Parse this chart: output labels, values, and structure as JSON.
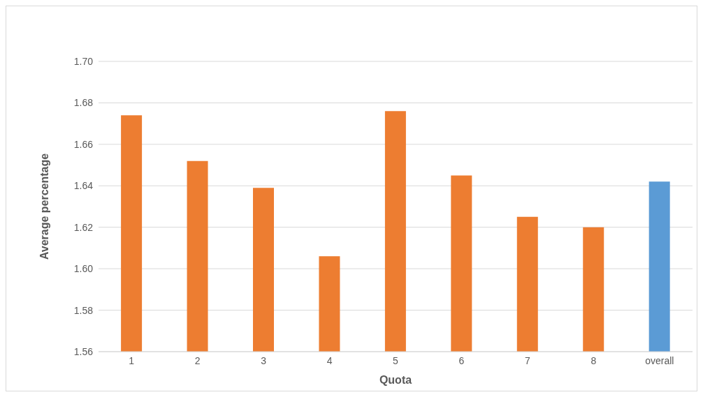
{
  "chart_data": {
    "type": "bar",
    "xlabel": "Quota",
    "ylabel": "Average percentage",
    "categories": [
      "1",
      "2",
      "3",
      "4",
      "5",
      "6",
      "7",
      "8",
      "overall"
    ],
    "values": [
      1.674,
      1.652,
      1.639,
      1.606,
      1.676,
      1.645,
      1.625,
      1.62,
      1.642
    ],
    "colors": [
      "#ed7d31",
      "#ed7d31",
      "#ed7d31",
      "#ed7d31",
      "#ed7d31",
      "#ed7d31",
      "#ed7d31",
      "#ed7d31",
      "#5b9bd5"
    ],
    "ylim": [
      1.56,
      1.7
    ],
    "yticks": [
      {
        "value": 1.56,
        "label": "1.56"
      },
      {
        "value": 1.58,
        "label": "1.58"
      },
      {
        "value": 1.6,
        "label": "1.60"
      },
      {
        "value": 1.62,
        "label": "1.62"
      },
      {
        "value": 1.64,
        "label": "1.64"
      },
      {
        "value": 1.66,
        "label": "1.66"
      },
      {
        "value": 1.68,
        "label": "1.68"
      },
      {
        "value": 1.7,
        "label": "1.70"
      }
    ],
    "grid": "y",
    "legend": false
  }
}
